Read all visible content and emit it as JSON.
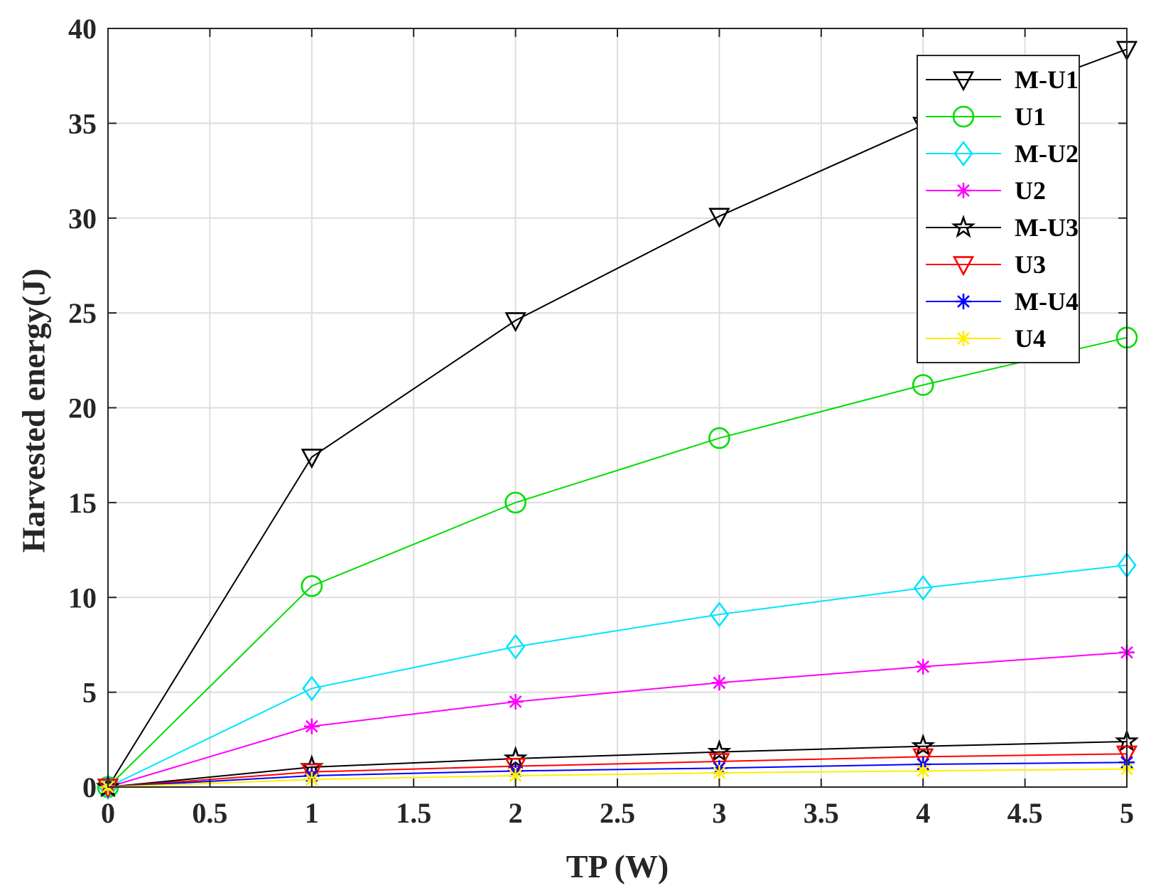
{
  "chart_data": {
    "type": "line",
    "title": "",
    "xlabel": "TP (W)",
    "ylabel": "Harvested energy(J)",
    "xlim": [
      0,
      5
    ],
    "ylim": [
      0,
      40
    ],
    "xticks": [
      0,
      0.5,
      1,
      1.5,
      2,
      2.5,
      3,
      3.5,
      4,
      4.5,
      5
    ],
    "xtick_labels": [
      "0",
      "0.5",
      "1",
      "1.5",
      "2",
      "2.5",
      "3",
      "3.5",
      "4",
      "4.5",
      "5"
    ],
    "yticks": [
      0,
      5,
      10,
      15,
      20,
      25,
      30,
      35,
      40
    ],
    "ytick_labels": [
      "0",
      "5",
      "10",
      "15",
      "20",
      "25",
      "30",
      "35",
      "40"
    ],
    "grid": true,
    "legend_position": "top-right",
    "x": [
      0,
      1,
      2,
      3,
      4,
      5
    ],
    "series": [
      {
        "name": "M-U1",
        "color": "#000000",
        "marker": "triangle-down",
        "values": [
          0,
          17.4,
          24.6,
          30.1,
          34.9,
          38.9
        ]
      },
      {
        "name": "U1",
        "color": "#00dd00",
        "marker": "circle",
        "values": [
          0,
          10.6,
          15.0,
          18.4,
          21.2,
          23.7
        ]
      },
      {
        "name": "M-U2",
        "color": "#00e5ff",
        "marker": "diamond",
        "values": [
          0,
          5.2,
          7.4,
          9.1,
          10.5,
          11.7
        ]
      },
      {
        "name": "U2",
        "color": "#ff00ff",
        "marker": "asterisk",
        "values": [
          0,
          3.2,
          4.5,
          5.5,
          6.35,
          7.1
        ]
      },
      {
        "name": "M-U3",
        "color": "#000000",
        "marker": "pentagram",
        "values": [
          0,
          1.05,
          1.5,
          1.85,
          2.15,
          2.4
        ]
      },
      {
        "name": "U3",
        "color": "#ff0000",
        "marker": "triangle-down",
        "values": [
          0,
          0.8,
          1.1,
          1.35,
          1.6,
          1.75
        ]
      },
      {
        "name": "M-U4",
        "color": "#0000ff",
        "marker": "asterisk",
        "values": [
          0,
          0.6,
          0.85,
          1.0,
          1.2,
          1.3
        ]
      },
      {
        "name": "U4",
        "color": "#ffee00",
        "marker": "asterisk",
        "values": [
          0,
          0.4,
          0.6,
          0.75,
          0.85,
          0.95
        ]
      }
    ]
  }
}
